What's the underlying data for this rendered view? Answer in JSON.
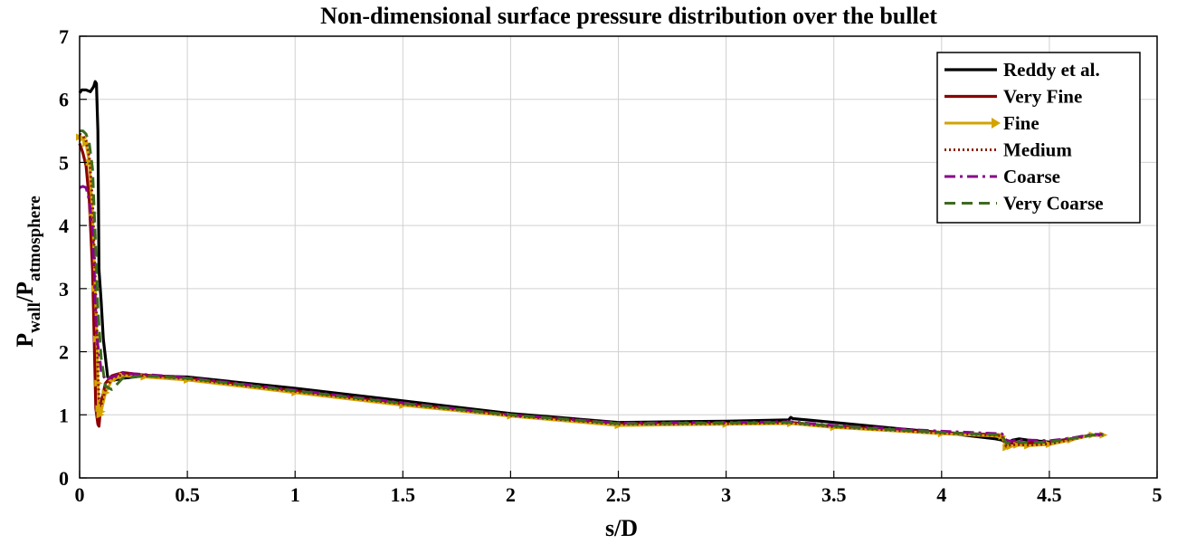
{
  "chart_data": {
    "type": "line",
    "title": "Non-dimensional surface pressure distribution over the bullet",
    "xlabel": "s/D",
    "ylabel": {
      "base1": "P",
      "sub1": "wall",
      "sep": "/",
      "base2": "P",
      "sub2": "atmosphere"
    },
    "xlim": [
      0,
      5
    ],
    "ylim": [
      0,
      7
    ],
    "xticks": [
      0,
      0.5,
      1,
      1.5,
      2,
      2.5,
      3,
      3.5,
      4,
      4.5,
      5
    ],
    "xtick_labels": [
      "0",
      "0.5",
      "1",
      "1.5",
      "2",
      "2.5",
      "3",
      "3.5",
      "4",
      "4.5",
      "5"
    ],
    "yticks": [
      0,
      1,
      2,
      3,
      4,
      5,
      6,
      7
    ],
    "ytick_labels": [
      "0",
      "1",
      "2",
      "3",
      "4",
      "5",
      "6",
      "7"
    ],
    "grid": true,
    "legend_position": "top-right",
    "series": [
      {
        "name": "Reddy et al.",
        "color": "#000000",
        "style": "solid",
        "x": [
          0,
          0.01,
          0.03,
          0.05,
          0.065,
          0.072,
          0.078,
          0.085,
          0.09,
          0.1,
          0.11,
          0.13,
          0.16,
          0.2,
          0.3,
          0.5,
          1.0,
          1.5,
          2.0,
          2.5,
          3.0,
          3.29,
          3.3,
          3.31,
          3.5,
          3.8,
          4.0,
          4.25,
          4.28,
          4.3,
          4.33,
          4.36,
          4.4,
          4.5,
          4.6,
          4.7,
          4.75
        ],
        "values": [
          6.1,
          6.15,
          6.15,
          6.12,
          6.2,
          6.28,
          6.25,
          5.5,
          3.3,
          2.8,
          2.2,
          1.6,
          1.55,
          1.58,
          1.62,
          1.6,
          1.42,
          1.22,
          1.02,
          0.88,
          0.9,
          0.92,
          0.96,
          0.94,
          0.88,
          0.78,
          0.72,
          0.62,
          0.6,
          0.55,
          0.6,
          0.62,
          0.6,
          0.57,
          0.62,
          0.68,
          0.68
        ]
      },
      {
        "name": "Very Fine",
        "color": "#8b0000",
        "style": "solid",
        "x": [
          0,
          0.015,
          0.03,
          0.045,
          0.06,
          0.075,
          0.085,
          0.09,
          0.1,
          0.12,
          0.15,
          0.2,
          0.3,
          0.5,
          1.0,
          1.5,
          2.0,
          2.5,
          3.0,
          3.3,
          3.5,
          4.0,
          4.28,
          4.3,
          4.32,
          4.35,
          4.4,
          4.5,
          4.6,
          4.7,
          4.75
        ],
        "values": [
          5.3,
          5.15,
          4.95,
          4.4,
          3.3,
          1.1,
          0.85,
          0.82,
          1.2,
          1.5,
          1.62,
          1.67,
          1.63,
          1.58,
          1.38,
          1.18,
          1.0,
          0.86,
          0.86,
          0.88,
          0.82,
          0.72,
          0.68,
          0.52,
          0.55,
          0.56,
          0.55,
          0.56,
          0.62,
          0.68,
          0.68
        ]
      },
      {
        "name": "Fine",
        "color": "#d4a300",
        "style": "solid-arrow",
        "x": [
          0,
          0.015,
          0.03,
          0.045,
          0.06,
          0.072,
          0.08,
          0.085,
          0.09,
          0.095,
          0.1,
          0.12,
          0.15,
          0.2,
          0.3,
          0.5,
          1.0,
          1.5,
          2.0,
          2.5,
          3.0,
          3.3,
          3.5,
          4.0,
          4.28,
          4.3,
          4.32,
          4.35,
          4.4,
          4.5,
          4.6,
          4.7,
          4.75
        ],
        "values": [
          5.4,
          5.38,
          5.3,
          5.0,
          4.2,
          3.0,
          2.2,
          1.5,
          1.1,
          1.0,
          1.05,
          1.35,
          1.55,
          1.62,
          1.6,
          1.55,
          1.35,
          1.15,
          0.98,
          0.83,
          0.85,
          0.86,
          0.8,
          0.7,
          0.66,
          0.48,
          0.5,
          0.52,
          0.51,
          0.53,
          0.6,
          0.68,
          0.68
        ]
      },
      {
        "name": "Medium",
        "color": "#8b1a00",
        "style": "dotted",
        "x": [
          0,
          0.015,
          0.03,
          0.045,
          0.06,
          0.072,
          0.08,
          0.085,
          0.09,
          0.1,
          0.12,
          0.15,
          0.2,
          0.3,
          0.5,
          1.0,
          1.5,
          2.0,
          2.5,
          3.0,
          3.3,
          3.5,
          4.0,
          4.28,
          4.3,
          4.32,
          4.35,
          4.4,
          4.5,
          4.6,
          4.7,
          4.75
        ],
        "values": [
          5.45,
          5.42,
          5.35,
          5.1,
          4.4,
          3.2,
          2.4,
          1.7,
          1.25,
          1.15,
          1.4,
          1.58,
          1.64,
          1.62,
          1.57,
          1.37,
          1.17,
          0.99,
          0.85,
          0.86,
          0.87,
          0.81,
          0.71,
          0.67,
          0.5,
          0.52,
          0.53,
          0.52,
          0.54,
          0.61,
          0.68,
          0.68
        ]
      },
      {
        "name": "Coarse",
        "color": "#8b008b",
        "style": "dashdot",
        "x": [
          0,
          0.015,
          0.03,
          0.045,
          0.06,
          0.07,
          0.078,
          0.085,
          0.09,
          0.1,
          0.12,
          0.15,
          0.2,
          0.3,
          0.5,
          1.0,
          1.5,
          2.0,
          2.5,
          3.0,
          3.3,
          3.5,
          4.0,
          4.28,
          4.3,
          4.32,
          4.35,
          4.4,
          4.5,
          4.6,
          4.7,
          4.75
        ],
        "values": [
          4.6,
          4.62,
          4.6,
          4.4,
          3.9,
          3.0,
          2.3,
          2.1,
          2.0,
          1.7,
          1.55,
          1.6,
          1.66,
          1.64,
          1.59,
          1.39,
          1.19,
          1.0,
          0.87,
          0.88,
          0.89,
          0.83,
          0.74,
          0.7,
          0.6,
          0.58,
          0.6,
          0.6,
          0.59,
          0.63,
          0.69,
          0.69
        ]
      },
      {
        "name": "Very Coarse",
        "color": "#3d6b1f",
        "style": "dashed",
        "x": [
          0,
          0.015,
          0.03,
          0.045,
          0.06,
          0.075,
          0.085,
          0.1,
          0.12,
          0.15,
          0.2,
          0.3,
          0.5,
          1.0,
          1.5,
          2.0,
          2.5,
          3.0,
          3.3,
          3.5,
          4.0,
          4.28,
          4.3,
          4.32,
          4.35,
          4.4,
          4.5,
          4.6,
          4.7,
          4.75
        ],
        "values": [
          5.5,
          5.5,
          5.45,
          5.3,
          4.9,
          3.6,
          2.7,
          1.9,
          1.45,
          1.4,
          1.58,
          1.62,
          1.58,
          1.38,
          1.18,
          1.0,
          0.86,
          0.87,
          0.88,
          0.82,
          0.72,
          0.68,
          0.55,
          0.56,
          0.57,
          0.56,
          0.57,
          0.62,
          0.68,
          0.68
        ]
      }
    ]
  }
}
